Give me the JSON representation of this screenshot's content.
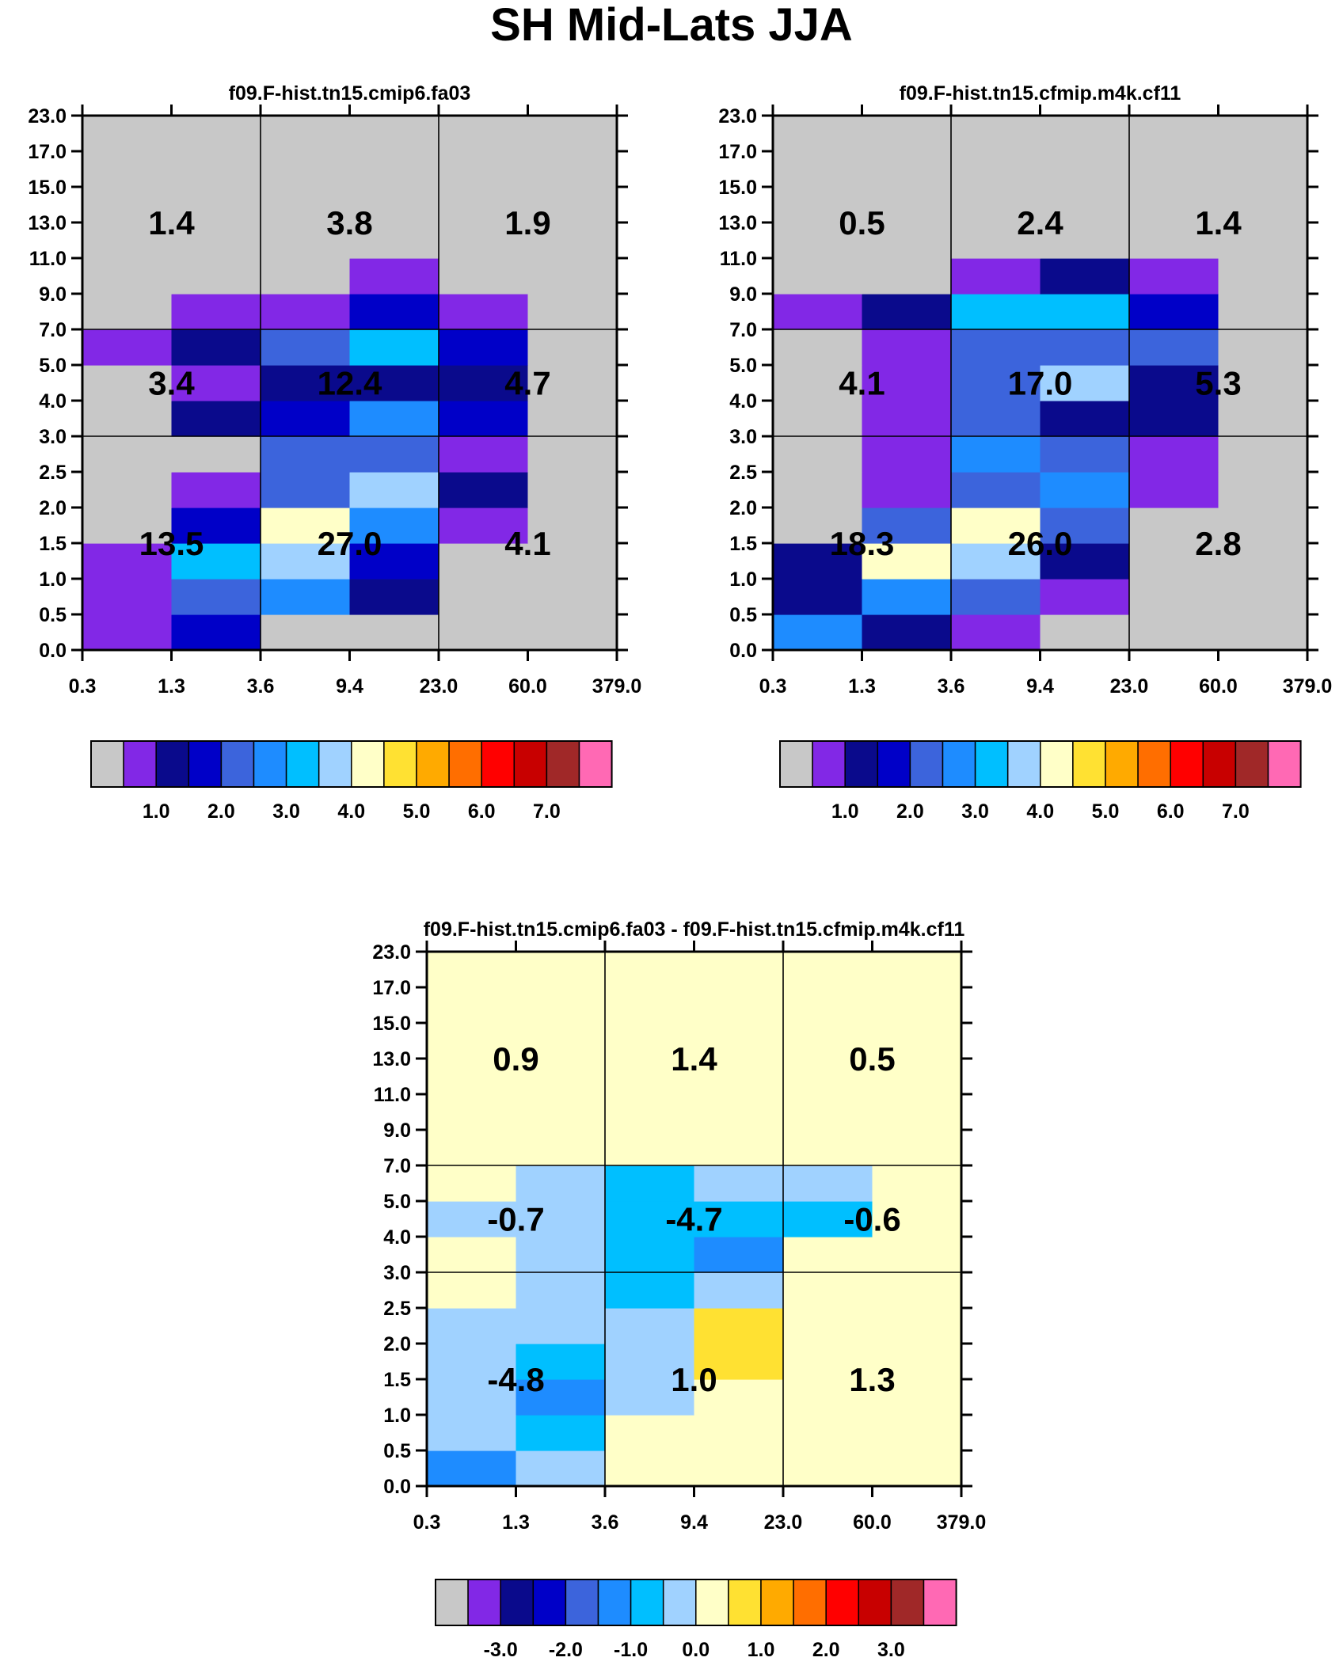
{
  "page_title": "SH Mid-Lats JJA",
  "x_tick_labels": [
    "0.3",
    "1.3",
    "3.6",
    "9.4",
    "23.0",
    "60.0",
    "379.0"
  ],
  "y_tick_labels": [
    "0.0",
    "0.5",
    "1.0",
    "1.5",
    "2.0",
    "2.5",
    "3.0",
    "4.0",
    "5.0",
    "7.0",
    "9.0",
    "11.0",
    "13.0",
    "15.0",
    "17.0",
    "23.0"
  ],
  "colors": {
    "missing": "#c0c0c0",
    "palette": [
      "#c8c8c8",
      "#8228e6",
      "#0a0a8c",
      "#0000c8",
      "#3c64dc",
      "#1e8cff",
      "#00bfff",
      "#a0d2ff",
      "#ffffc8",
      "#ffe132",
      "#ffaa00",
      "#ff6e00",
      "#ff0000",
      "#c80000",
      "#a02828",
      "#ff69b4"
    ]
  },
  "chart_data": [
    {
      "type": "heatmap",
      "title": "f09.F-hist.tn15.cmip6.fa03",
      "cells": [
        [
          1,
          3,
          0,
          0,
          0,
          0
        ],
        [
          1,
          4,
          5,
          2,
          0,
          0
        ],
        [
          1,
          6,
          7,
          3,
          0,
          0
        ],
        [
          0,
          3,
          8,
          5,
          1,
          0
        ],
        [
          0,
          1,
          4,
          7,
          2,
          0
        ],
        [
          0,
          0,
          4,
          4,
          1,
          0
        ],
        [
          0,
          2,
          3,
          5,
          3,
          0
        ],
        [
          0,
          1,
          2,
          2,
          2,
          0
        ],
        [
          1,
          2,
          4,
          6,
          3,
          0
        ],
        [
          0,
          1,
          1,
          3,
          1,
          0
        ],
        [
          0,
          0,
          0,
          1,
          0,
          0
        ],
        [
          0,
          0,
          0,
          0,
          0,
          0
        ],
        [
          0,
          0,
          0,
          0,
          0,
          0
        ],
        [
          0,
          0,
          0,
          0,
          0,
          0
        ],
        [
          0,
          0,
          0,
          0,
          0,
          0
        ]
      ],
      "block_values": [
        [
          "13.5",
          "27.0",
          "4.1"
        ],
        [
          "3.4",
          "12.4",
          "4.7"
        ],
        [
          "1.4",
          "3.8",
          "1.9"
        ]
      ],
      "colorbar": {
        "tick_labels": [
          "1.0",
          "2.0",
          "3.0",
          "4.0",
          "5.0",
          "6.0",
          "7.0"
        ]
      }
    },
    {
      "type": "heatmap",
      "title": "f09.F-hist.tn15.cfmip.m4k.cf11",
      "cells": [
        [
          5,
          2,
          1,
          0,
          0,
          0
        ],
        [
          2,
          5,
          4,
          1,
          0,
          0
        ],
        [
          2,
          8,
          7,
          2,
          0,
          0
        ],
        [
          0,
          4,
          8,
          4,
          0,
          0
        ],
        [
          0,
          1,
          4,
          5,
          1,
          0
        ],
        [
          0,
          1,
          5,
          4,
          1,
          0
        ],
        [
          0,
          1,
          4,
          2,
          2,
          0
        ],
        [
          0,
          1,
          4,
          7,
          2,
          0
        ],
        [
          0,
          1,
          4,
          4,
          4,
          0
        ],
        [
          1,
          2,
          6,
          6,
          3,
          0
        ],
        [
          0,
          0,
          1,
          2,
          1,
          0
        ],
        [
          0,
          0,
          0,
          0,
          0,
          0
        ],
        [
          0,
          0,
          0,
          0,
          0,
          0
        ],
        [
          0,
          0,
          0,
          0,
          0,
          0
        ],
        [
          0,
          0,
          0,
          0,
          0,
          0
        ]
      ],
      "block_values": [
        [
          "18.3",
          "26.0",
          "2.8"
        ],
        [
          "4.1",
          "17.0",
          "5.3"
        ],
        [
          "0.5",
          "2.4",
          "1.4"
        ]
      ],
      "colorbar": {
        "tick_labels": [
          "1.0",
          "2.0",
          "3.0",
          "4.0",
          "5.0",
          "6.0",
          "7.0"
        ]
      }
    },
    {
      "type": "heatmap",
      "title": "f09.F-hist.tn15.cmip6.fa03 - f09.F-hist.tn15.cfmip.m4k.cf11",
      "cells": [
        [
          5,
          7,
          8,
          8,
          8,
          8
        ],
        [
          7,
          6,
          8,
          8,
          8,
          8
        ],
        [
          7,
          5,
          7,
          8,
          8,
          8
        ],
        [
          7,
          6,
          7,
          9,
          8,
          8
        ],
        [
          7,
          7,
          7,
          9,
          8,
          8
        ],
        [
          8,
          7,
          6,
          7,
          8,
          8
        ],
        [
          8,
          7,
          6,
          5,
          8,
          8
        ],
        [
          7,
          7,
          6,
          6,
          6,
          8
        ],
        [
          8,
          7,
          6,
          7,
          7,
          8
        ],
        [
          8,
          8,
          8,
          8,
          8,
          8
        ],
        [
          8,
          8,
          8,
          8,
          8,
          8
        ],
        [
          8,
          8,
          8,
          8,
          8,
          8
        ],
        [
          8,
          8,
          8,
          8,
          8,
          8
        ],
        [
          8,
          8,
          8,
          8,
          8,
          8
        ],
        [
          8,
          8,
          8,
          8,
          8,
          8
        ]
      ],
      "block_values": [
        [
          "-4.8",
          "1.0",
          "1.3"
        ],
        [
          "-0.7",
          "-4.7",
          "-0.6"
        ],
        [
          "0.9",
          "1.4",
          "0.5"
        ]
      ],
      "colorbar": {
        "tick_labels": [
          "-3.0",
          "-2.0",
          "-1.0",
          "0.0",
          "1.0",
          "2.0",
          "3.0"
        ]
      }
    }
  ]
}
